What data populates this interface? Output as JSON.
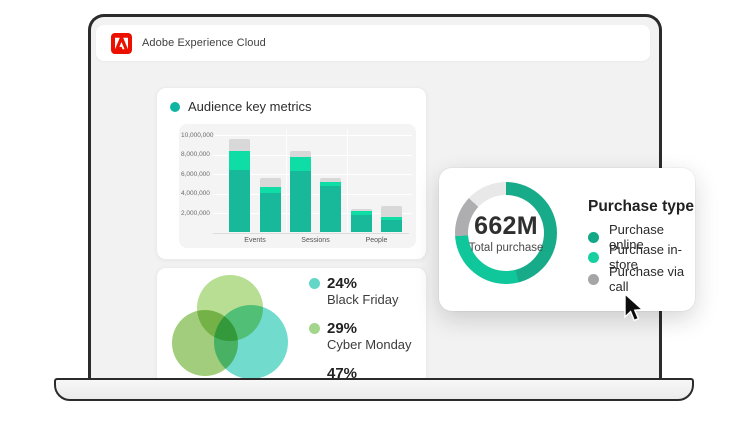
{
  "brand": {
    "name": "Adobe Experience Cloud",
    "logo_color": "#eb1000"
  },
  "audience_card": {
    "title": "Audience key metrics",
    "accent_dot_color": "#0fb5a2"
  },
  "venn_card": {
    "legend": [
      {
        "pct": "24%",
        "label": "Black Friday",
        "dot_color": "#62d7c8"
      },
      {
        "pct": "29%",
        "label": "Cyber Monday",
        "dot_color": "#a4d58c"
      },
      {
        "pct": "47%",
        "label": "",
        "dot_color": "#e3e3e3"
      }
    ]
  },
  "purchase_card": {
    "title": "Purchase type",
    "center_value": "662M",
    "center_label": "Total purchase",
    "legend": [
      {
        "label": "Purchase online",
        "dot_color": "#13a886"
      },
      {
        "label": "Purchase in-store",
        "dot_color": "#17cf9f"
      },
      {
        "label": "Purchase via call",
        "dot_color": "#a5a5a8"
      }
    ]
  },
  "chart_data": [
    {
      "type": "bar",
      "stacked": true,
      "title": "Audience key metrics",
      "categories": [
        "Events",
        "Sessions",
        "People"
      ],
      "bars": [
        {
          "category": "Events",
          "segments": [
            6400000,
            2000000,
            1200000
          ]
        },
        {
          "category": "Events",
          "segments": [
            4100000,
            600000,
            900000
          ]
        },
        {
          "category": "Sessions",
          "segments": [
            6300000,
            1400000,
            700000
          ]
        },
        {
          "category": "Sessions",
          "segments": [
            4800000,
            400000,
            400000
          ]
        },
        {
          "category": "People",
          "segments": [
            1800000,
            400000,
            200000
          ]
        },
        {
          "category": "People",
          "segments": [
            1300000,
            300000,
            1100000
          ]
        }
      ],
      "segment_colors": [
        "#18b89a",
        "#0edda6",
        "#d8d8d8"
      ],
      "yticks": [
        2000000,
        4000000,
        6000000,
        8000000,
        10000000
      ],
      "ytick_labels": [
        "2,000,000",
        "4,000,000",
        "6,000,000",
        "8,000,000",
        "10,000,000"
      ],
      "ylim": [
        0,
        10000000
      ],
      "grid": true,
      "legend_position": "none"
    },
    {
      "type": "venn",
      "circles": [
        {
          "position": "top",
          "color": "#abd880"
        },
        {
          "position": "bottom-left",
          "color": "#90c565"
        },
        {
          "position": "bottom-right",
          "color": "#58d6c4"
        }
      ],
      "values": [
        {
          "value": "24%",
          "label": "Black Friday"
        },
        {
          "value": "29%",
          "label": "Cyber Monday"
        },
        {
          "value": "47%",
          "label": ""
        }
      ]
    },
    {
      "type": "donut",
      "title": "Purchase type",
      "center_value": "662M",
      "center_label": "Total purchase",
      "segments": [
        {
          "label": "Purchase online",
          "pct": 46,
          "color": "#17ab89"
        },
        {
          "label": "Purchase in-store",
          "pct": 28,
          "color": "#10c79b"
        },
        {
          "label": "Purchase via call",
          "pct": 13,
          "color": "#aeaeb1"
        },
        {
          "label": "",
          "pct": 13,
          "color": "#e8e8e8"
        }
      ],
      "legend_position": "right"
    }
  ]
}
